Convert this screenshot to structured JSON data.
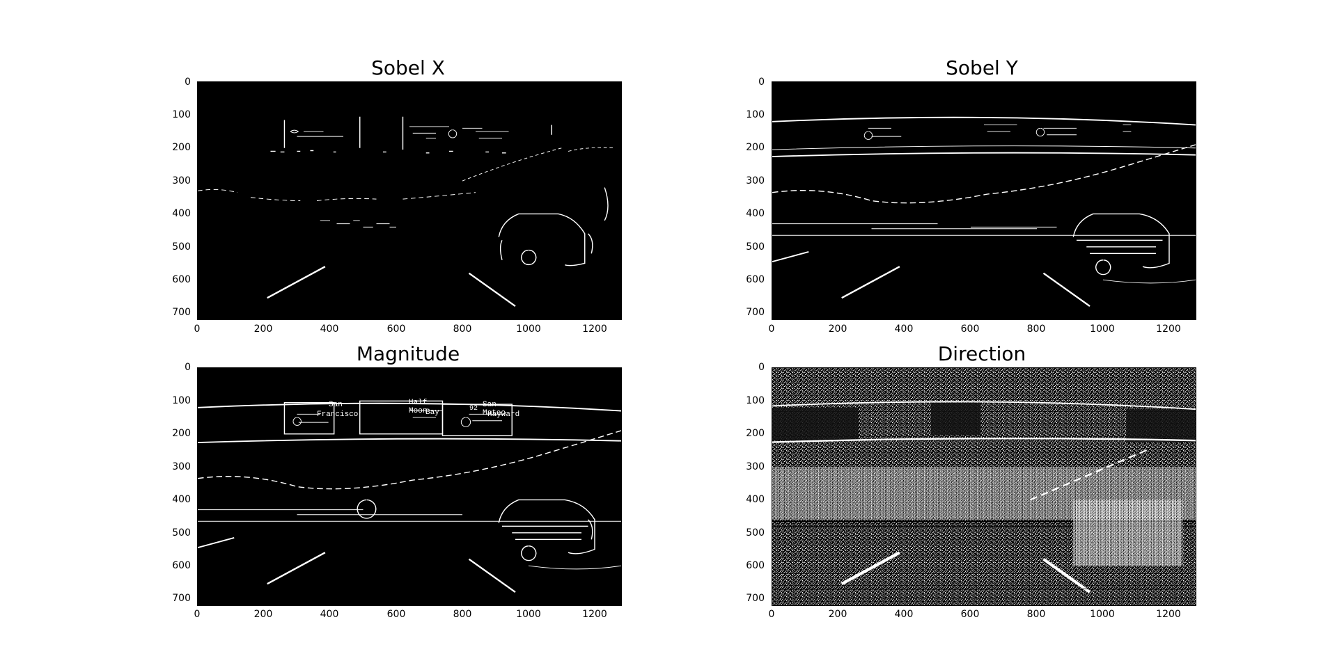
{
  "panels": [
    {
      "title": "Sobel X",
      "kind": "sobel-x"
    },
    {
      "title": "Sobel Y",
      "kind": "sobel-y"
    },
    {
      "title": "Magnitude",
      "kind": "magnitude"
    },
    {
      "title": "Direction",
      "kind": "direction"
    }
  ],
  "axes": {
    "yticks": [
      "0",
      "100",
      "200",
      "300",
      "400",
      "500",
      "600",
      "700"
    ],
    "xticks": [
      "0",
      "200",
      "400",
      "600",
      "800",
      "1000",
      "1200"
    ],
    "xlim": [
      0,
      1280
    ],
    "ylim": [
      720,
      0
    ]
  },
  "sign_text": {
    "left": [
      "San",
      "Francisco"
    ],
    "middle": [
      "Half Moon",
      "Bay"
    ],
    "right": [
      "San Mateo",
      "Hayward"
    ],
    "route": "92"
  }
}
